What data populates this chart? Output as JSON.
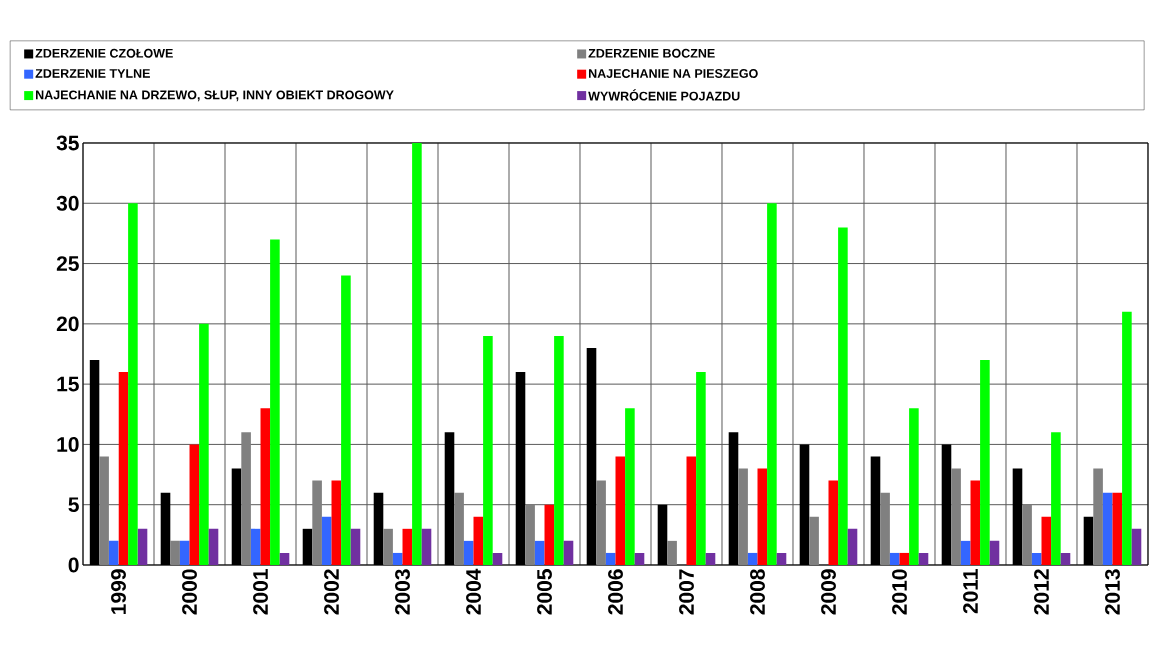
{
  "chart_data": {
    "type": "bar",
    "categories": [
      "1999",
      "2000",
      "2001",
      "2002",
      "2003",
      "2004",
      "2005",
      "2006",
      "2007",
      "2008",
      "2009",
      "2010",
      "2011",
      "2012",
      "2013"
    ],
    "series": [
      {
        "name": "ZDERZENIE CZOŁOWE",
        "color": "#000000",
        "values": [
          17,
          6,
          8,
          3,
          6,
          11,
          16,
          18,
          5,
          11,
          10,
          9,
          10,
          8,
          4
        ]
      },
      {
        "name": "ZDERZENIE BOCZNE",
        "color": "#808080",
        "values": [
          9,
          2,
          11,
          7,
          3,
          6,
          5,
          7,
          2,
          8,
          4,
          6,
          8,
          5,
          8
        ]
      },
      {
        "name": "ZDERZENIE TYLNE",
        "color": "#3366ff",
        "values": [
          2,
          2,
          3,
          4,
          1,
          2,
          2,
          1,
          0,
          1,
          0,
          1,
          2,
          1,
          6
        ]
      },
      {
        "name": "NAJECHANIE NA PIESZEGO",
        "color": "#ff0000",
        "values": [
          16,
          10,
          13,
          7,
          3,
          4,
          5,
          9,
          9,
          8,
          7,
          1,
          7,
          4,
          6
        ]
      },
      {
        "name": "NAJECHANIE NA DRZEWO, SŁUP, INNY OBIEKT DROGOWY",
        "color": "#00ff00",
        "values": [
          30,
          20,
          27,
          24,
          35,
          19,
          19,
          13,
          16,
          30,
          28,
          13,
          17,
          11,
          21
        ]
      },
      {
        "name": "WYWRÓCENIE POJAZDU",
        "color": "#7030a0",
        "values": [
          3,
          3,
          1,
          3,
          3,
          1,
          2,
          1,
          1,
          1,
          3,
          1,
          2,
          1,
          3
        ]
      }
    ],
    "ylim": [
      0,
      35
    ],
    "yticks": [
      0,
      5,
      10,
      15,
      20,
      25,
      30,
      35
    ],
    "grid": true,
    "legend": "top"
  }
}
